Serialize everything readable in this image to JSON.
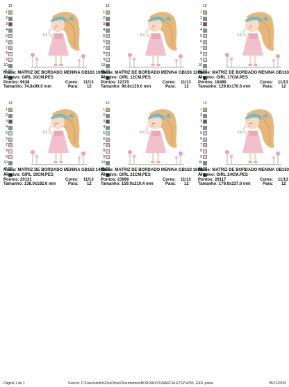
{
  "labels": {
    "nome": "Nome:",
    "arquivo": "Arquivo:",
    "pontos": "Pontos:",
    "tamanho": "Tamanho:",
    "cores": "Cores:",
    "para": "Para:"
  },
  "palette_header": "13",
  "palette_numbers": [
    "1",
    "2",
    "3",
    "4",
    "5",
    "6",
    "7",
    "8",
    "9",
    "10",
    "11",
    "12"
  ],
  "palette_colors": [
    "#d9a36a",
    "#7b8a8e",
    "#6a4e3a",
    "#5aa0b4",
    "#a6d4e0",
    "#c8b9a2",
    "#e9a9b8",
    "#f2c7d2",
    "#e8d0d6",
    "#7c8a86",
    "#b2b8a8",
    "#3b3b3b"
  ],
  "cards": [
    {
      "nome": "MATRIZ DE BORDADO MENINA GB163 10CM",
      "arquivo": "GIRL 10CM.PES",
      "pontos": "9638",
      "tamanho": "74.8x99.0 mm",
      "cores": "11/13",
      "para": "12"
    },
    {
      "nome": "MATRIZ DE BORDADO MENINA GB163 12CM",
      "arquivo": "GIRL 12CM.PES",
      "pontos": "12370",
      "tamanho": "90.8x120.0 mm",
      "cores": "11/13",
      "para": "12"
    },
    {
      "nome": "MATRIZ DE BORDADO MENINA GB163",
      "arquivo": "GIRL 17CM.PES",
      "pontos": "18489",
      "tamanho": "129.0x170.6 mm",
      "cores": "11/13",
      "para": "12"
    },
    {
      "nome": "MATRIZ DE BORDADO MENINA GB163 14CM",
      "arquivo": "GIRL 19CM.PES",
      "pontos": "20131",
      "tamanho": "138.0x182.6 mm",
      "cores": "11/13",
      "para": "12"
    },
    {
      "nome": "MATRIZ DE BORDADO MENINA GB163 16CM",
      "arquivo": "GIRL 21CM.PES",
      "pontos": "23990",
      "tamanho": "159.0x210.4 mm",
      "cores": "11/13",
      "para": "12"
    },
    {
      "nome": "MATRIZ DE BORDADO MENINA GB163",
      "arquivo": "GIRL 24CM.PES",
      "pontos": "28117",
      "tamanho": "179.0x237.0 mm",
      "cores": "11/13",
      "para": "12"
    }
  ],
  "footer": {
    "page": "Página 1 de 1",
    "source": "Source:  C:\\Users\\dellm\\OneDrive\\Documentos\\BORDADOS\\MARCIA ETSY\\4255. GIRL pasta",
    "date": "05/12/2025"
  }
}
